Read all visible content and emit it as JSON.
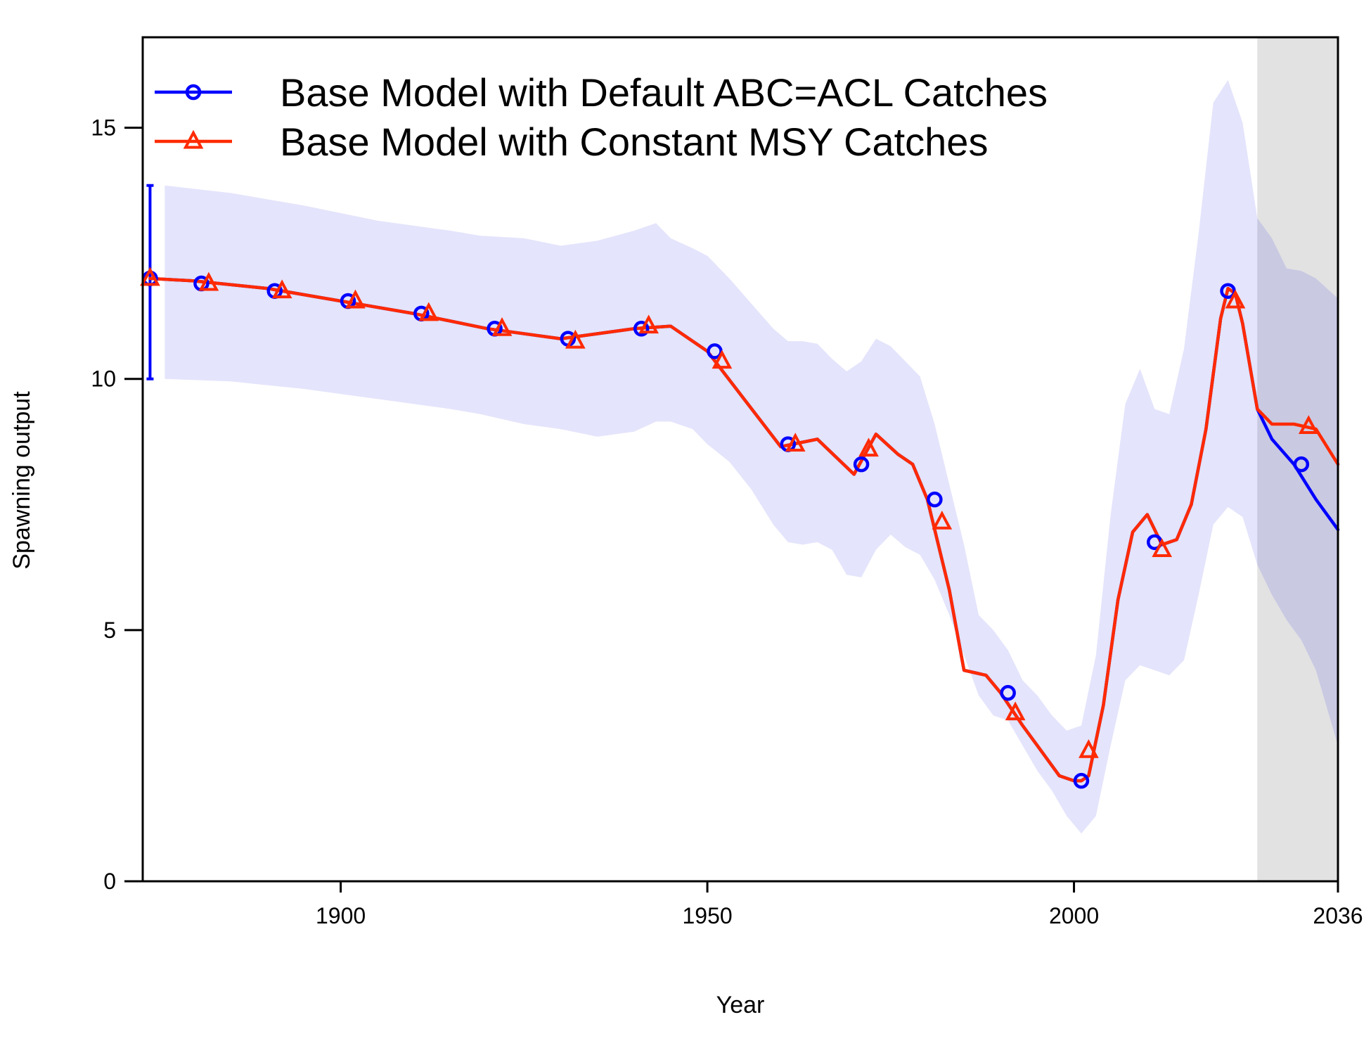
{
  "chart_data": {
    "type": "line",
    "xlabel": "Year",
    "ylabel": "Spawning output",
    "xlim": [
      1873,
      2036
    ],
    "ylim": [
      0,
      16.8
    ],
    "x_ticks": [
      1900,
      1950,
      2000,
      2036
    ],
    "y_ticks": [
      0,
      5,
      10,
      15
    ],
    "legend_position": "top-left",
    "forecast_region": {
      "start": 2025,
      "end": 2036,
      "color": "#E2E2E2"
    },
    "colors": {
      "base": "#0000FF",
      "msy": "#FF2A00",
      "band": "#E4E4FC",
      "band_forecast": "#C9C9E2",
      "axis": "#000000"
    },
    "virgin": {
      "x": 1874,
      "value": 12.0,
      "lower": 10.0,
      "upper": 13.85
    },
    "series": [
      {
        "name": "Base Model with Default ABC=ACL Catches",
        "color": "#0000FF",
        "marker": "circle",
        "x": [
          1874,
          1880,
          1890,
          1900,
          1910,
          1920,
          1930,
          1940,
          1945,
          1950,
          1955,
          1960,
          1965,
          1970,
          1973,
          1976,
          1978,
          1980,
          1983,
          1985,
          1988,
          1990,
          1993,
          1995,
          1998,
          2000,
          2001,
          2002,
          2004,
          2006,
          2008,
          2010,
          2012,
          2014,
          2016,
          2018,
          2020,
          2021,
          2022,
          2023,
          2025,
          2027,
          2030,
          2033,
          2036
        ],
        "y": [
          12.0,
          11.95,
          11.8,
          11.55,
          11.3,
          11.0,
          10.8,
          11.0,
          11.05,
          10.55,
          9.6,
          8.65,
          8.8,
          8.1,
          8.9,
          8.5,
          8.3,
          7.6,
          5.8,
          4.2,
          4.1,
          3.75,
          3.1,
          2.7,
          2.1,
          2.0,
          2.0,
          2.1,
          3.5,
          5.6,
          6.95,
          7.3,
          6.7,
          6.8,
          7.5,
          9.0,
          11.2,
          11.8,
          11.7,
          11.1,
          9.4,
          8.8,
          8.3,
          7.6,
          7.0
        ]
      },
      {
        "name": "Base Model with Constant MSY Catches",
        "color": "#FF2A00",
        "marker": "triangle",
        "x": [
          1874,
          1880,
          1890,
          1900,
          1910,
          1920,
          1930,
          1940,
          1945,
          1950,
          1955,
          1960,
          1965,
          1970,
          1973,
          1976,
          1978,
          1980,
          1983,
          1985,
          1988,
          1990,
          1993,
          1995,
          1998,
          2000,
          2001,
          2002,
          2004,
          2006,
          2008,
          2010,
          2012,
          2014,
          2016,
          2018,
          2020,
          2021,
          2022,
          2023,
          2025,
          2027,
          2030,
          2033,
          2036
        ],
        "y": [
          12.0,
          11.95,
          11.8,
          11.55,
          11.3,
          11.0,
          10.8,
          11.0,
          11.05,
          10.55,
          9.6,
          8.65,
          8.8,
          8.1,
          8.9,
          8.5,
          8.3,
          7.6,
          5.8,
          4.2,
          4.1,
          3.75,
          3.1,
          2.7,
          2.1,
          2.0,
          2.0,
          2.1,
          3.5,
          5.6,
          6.95,
          7.3,
          6.7,
          6.8,
          7.5,
          9.0,
          11.2,
          11.8,
          11.7,
          11.1,
          9.4,
          9.1,
          9.1,
          9.0,
          8.3
        ]
      }
    ],
    "markers": {
      "Base Model with Default ABC=ACL Catches": {
        "x": [
          1874,
          1881,
          1891,
          1901,
          1911,
          1921,
          1931,
          1941,
          1951,
          1961,
          1971,
          1981,
          1991,
          2001,
          2011,
          2021,
          2031
        ],
        "y": [
          12.0,
          11.9,
          11.75,
          11.55,
          11.3,
          11.0,
          10.8,
          11.0,
          10.55,
          8.7,
          8.3,
          7.6,
          3.75,
          2.0,
          6.75,
          11.75,
          8.3
        ]
      },
      "Base Model with Constant MSY Catches": {
        "x": [
          1874,
          1882,
          1892,
          1902,
          1912,
          1922,
          1932,
          1942,
          1952,
          1962,
          1972,
          1982,
          1992,
          2002,
          2012,
          2022,
          2032
        ],
        "y": [
          12.0,
          11.9,
          11.75,
          11.55,
          11.3,
          11.0,
          10.75,
          11.05,
          10.35,
          8.7,
          8.6,
          7.15,
          3.35,
          2.6,
          6.6,
          11.55,
          9.05
        ]
      }
    },
    "uncertainty_band": {
      "x": [
        1876,
        1885,
        1895,
        1905,
        1915,
        1919,
        1925,
        1930,
        1935,
        1940,
        1943,
        1945,
        1948,
        1950,
        1953,
        1956,
        1959,
        1961,
        1963,
        1965,
        1967,
        1969,
        1971,
        1973,
        1975,
        1977,
        1979,
        1981,
        1983,
        1985,
        1987,
        1989,
        1991,
        1993,
        1995,
        1997,
        1999,
        2001,
        2003,
        2005,
        2007,
        2009,
        2011,
        2013,
        2015,
        2017,
        2019,
        2021,
        2023,
        2025,
        2027,
        2029,
        2031,
        2033,
        2036
      ],
      "upper": [
        13.85,
        13.7,
        13.45,
        13.15,
        12.95,
        12.85,
        12.8,
        12.65,
        12.75,
        12.95,
        13.1,
        12.8,
        12.6,
        12.45,
        12.0,
        11.5,
        11.0,
        10.75,
        10.75,
        10.7,
        10.4,
        10.15,
        10.35,
        10.8,
        10.65,
        10.35,
        10.05,
        9.1,
        7.9,
        6.7,
        5.3,
        5.0,
        4.6,
        4.0,
        3.7,
        3.3,
        3.0,
        3.1,
        4.5,
        7.3,
        9.5,
        10.2,
        9.4,
        9.3,
        10.6,
        12.9,
        15.5,
        15.95,
        15.1,
        13.2,
        12.8,
        12.2,
        12.15,
        12.0,
        11.6
      ],
      "lower": [
        10.0,
        9.95,
        9.8,
        9.6,
        9.4,
        9.3,
        9.1,
        9.0,
        8.85,
        8.95,
        9.15,
        9.15,
        9.0,
        8.7,
        8.35,
        7.8,
        7.1,
        6.75,
        6.7,
        6.75,
        6.6,
        6.1,
        6.05,
        6.6,
        6.9,
        6.65,
        6.5,
        6.0,
        5.3,
        4.5,
        3.7,
        3.3,
        3.2,
        2.7,
        2.2,
        1.8,
        1.3,
        0.95,
        1.3,
        2.7,
        4.0,
        4.3,
        4.2,
        4.1,
        4.4,
        5.7,
        7.1,
        7.45,
        7.25,
        6.3,
        5.7,
        5.2,
        4.8,
        4.2,
        2.7
      ]
    }
  }
}
